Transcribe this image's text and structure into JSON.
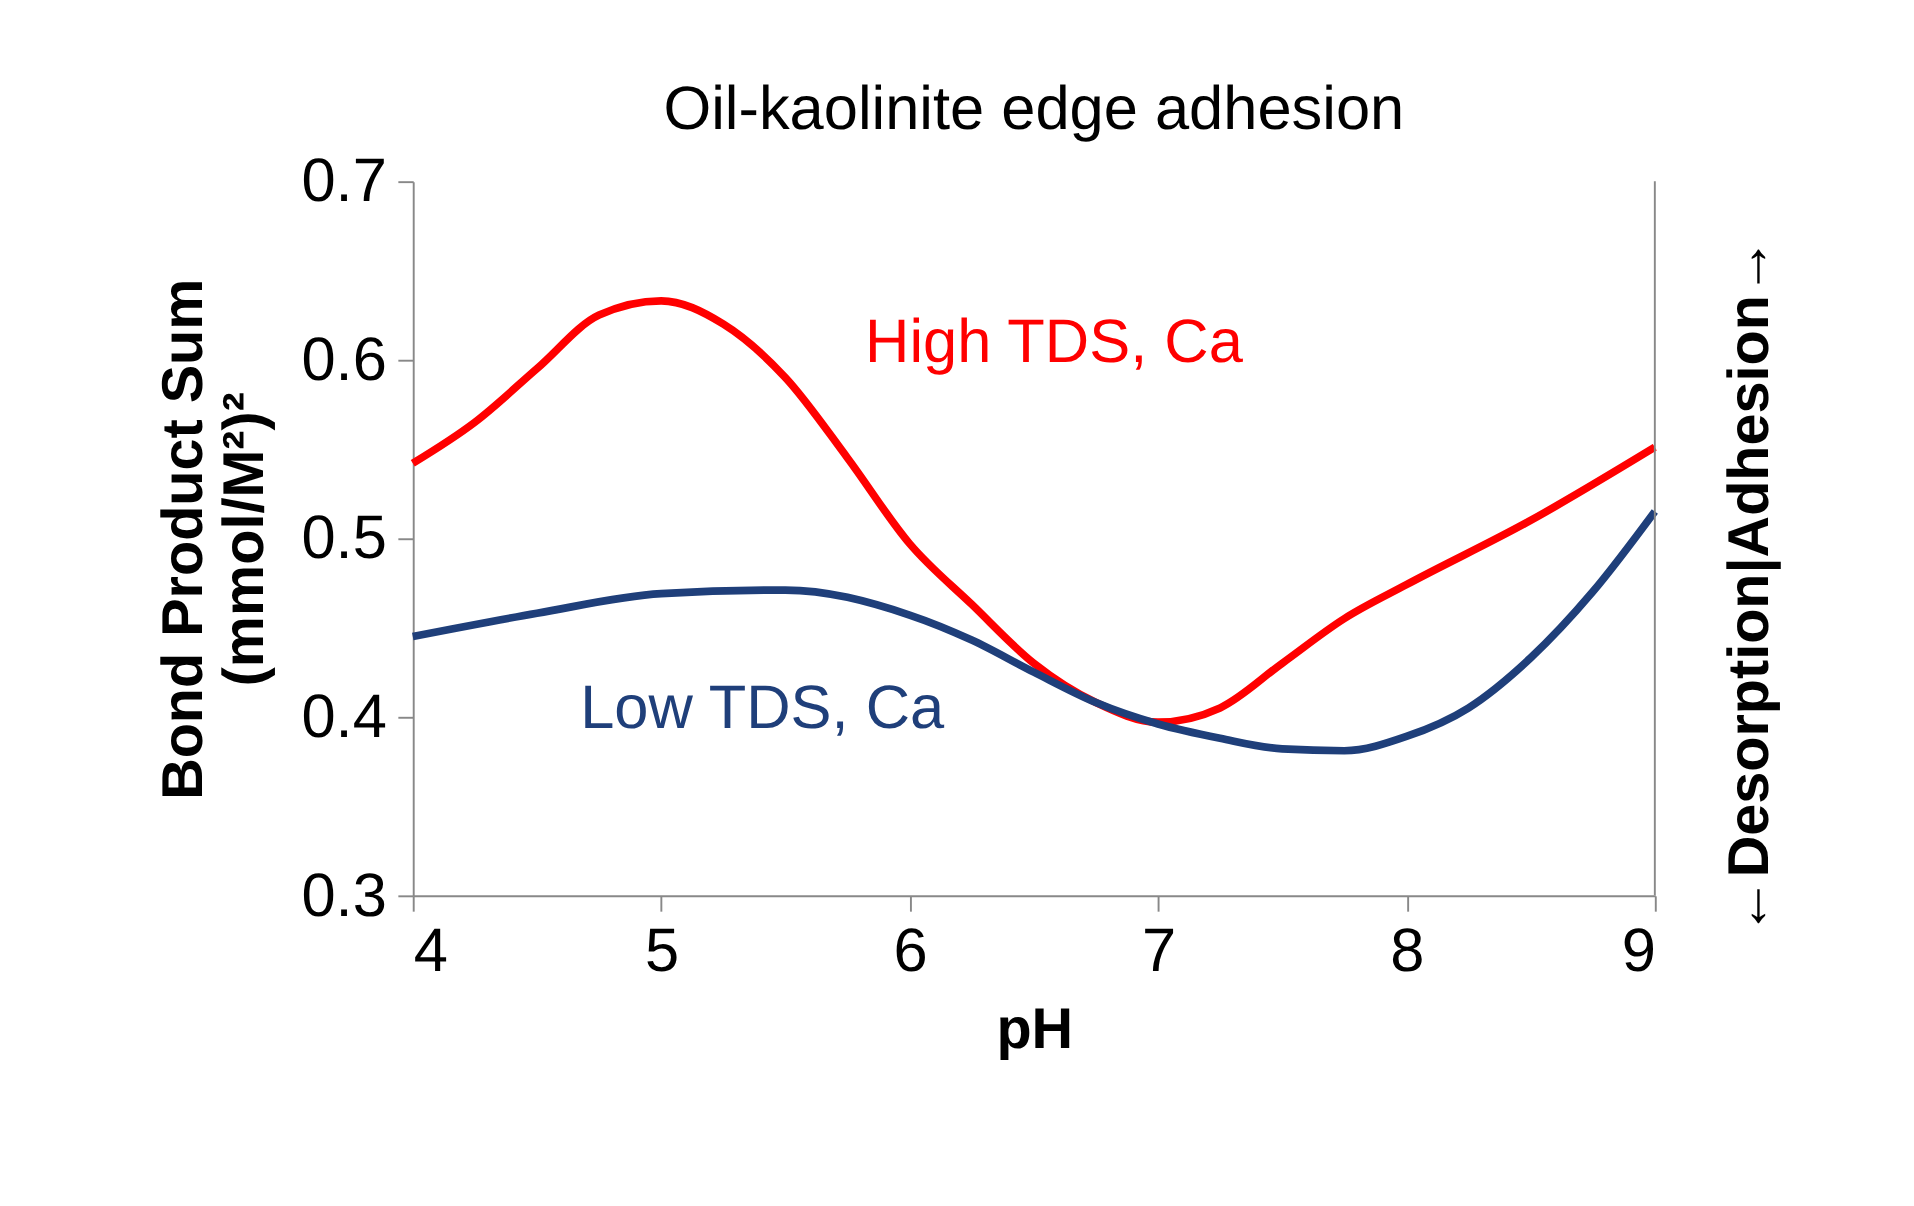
{
  "chart_data": {
    "type": "line",
    "title": "Oil-kaolinite edge adhesion",
    "xlabel": "pH",
    "ylabel": "Bond Product Sum\n(mmol/M²)²",
    "y2label": "←Desorption|Adhesion→",
    "series": [
      {
        "name": "High TDS, Ca",
        "color": "#ff0000",
        "x": [
          4,
          4.25,
          4.5,
          4.75,
          5.0,
          5.25,
          5.5,
          5.75,
          6.0,
          6.25,
          6.5,
          6.75,
          7.0,
          7.25,
          7.5,
          7.75,
          8.0,
          8.5,
          9.0
        ],
        "values": [
          0.542,
          0.565,
          0.595,
          0.625,
          0.633,
          0.62,
          0.59,
          0.545,
          0.497,
          0.463,
          0.43,
          0.408,
          0.397,
          0.405,
          0.43,
          0.455,
          0.474,
          0.51,
          0.551
        ]
      },
      {
        "name": "Low TDS, Ca",
        "color": "#1f3f7a",
        "x": [
          4,
          4.5,
          5.0,
          5.5,
          6.0,
          6.25,
          6.5,
          6.75,
          7.0,
          7.25,
          7.5,
          7.75,
          8.0,
          8.25,
          8.5,
          8.75,
          9.0
        ],
        "values": [
          0.445,
          0.458,
          0.469,
          0.471,
          0.457,
          0.443,
          0.425,
          0.408,
          0.396,
          0.388,
          0.382,
          0.381,
          0.389,
          0.405,
          0.433,
          0.47,
          0.515
        ]
      }
    ],
    "xlim": [
      4,
      9
    ],
    "xticks": [
      4,
      5,
      6,
      7,
      8,
      9
    ],
    "ylim": [
      0.3,
      0.7
    ],
    "yticks": [
      0.3,
      0.4,
      0.5,
      0.6,
      0.7
    ],
    "grid": false,
    "marker": "none",
    "line_style": "solid"
  }
}
